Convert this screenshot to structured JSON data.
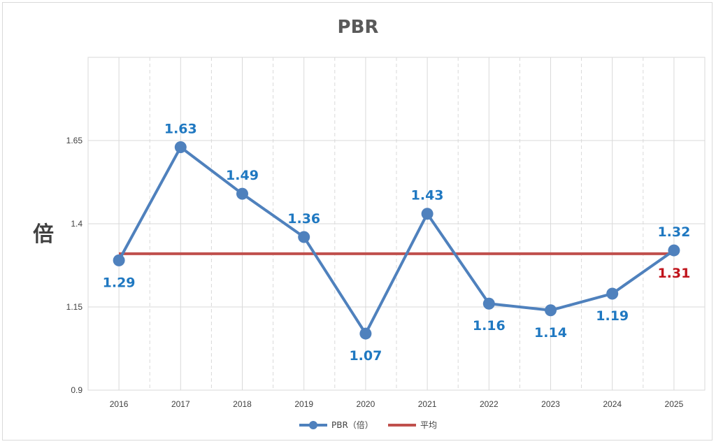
{
  "colors": {
    "series": "#4f81bd",
    "average": "#c0504d",
    "grid": "#d9d9d9",
    "label": "#1f78c1",
    "avg_label": "#c0141c"
  },
  "chart_data": {
    "type": "line",
    "title": "PBR",
    "ylabel": "倍",
    "xlabel": "",
    "categories": [
      "2016",
      "2017",
      "2018",
      "2019",
      "2020",
      "2021",
      "2022",
      "2023",
      "2024",
      "2025"
    ],
    "yticks": [
      "0.9",
      "1.15",
      "1.4",
      "1.65"
    ],
    "ylim": [
      0.9,
      1.9
    ],
    "grid": true,
    "legend": "bottom",
    "series": [
      {
        "name": "PBR（倍）",
        "values": [
          1.29,
          1.63,
          1.49,
          1.36,
          1.07,
          1.43,
          1.16,
          1.14,
          1.19,
          1.32
        ],
        "labels": [
          "1.29",
          "1.63",
          "1.49",
          "1.36",
          "1.07",
          "1.43",
          "1.16",
          "1.14",
          "1.19",
          "1.32"
        ]
      },
      {
        "name": "平均",
        "values": [
          1.31,
          1.31,
          1.31,
          1.31,
          1.31,
          1.31,
          1.31,
          1.31,
          1.31,
          1.31
        ],
        "end_label": "1.31"
      }
    ]
  }
}
